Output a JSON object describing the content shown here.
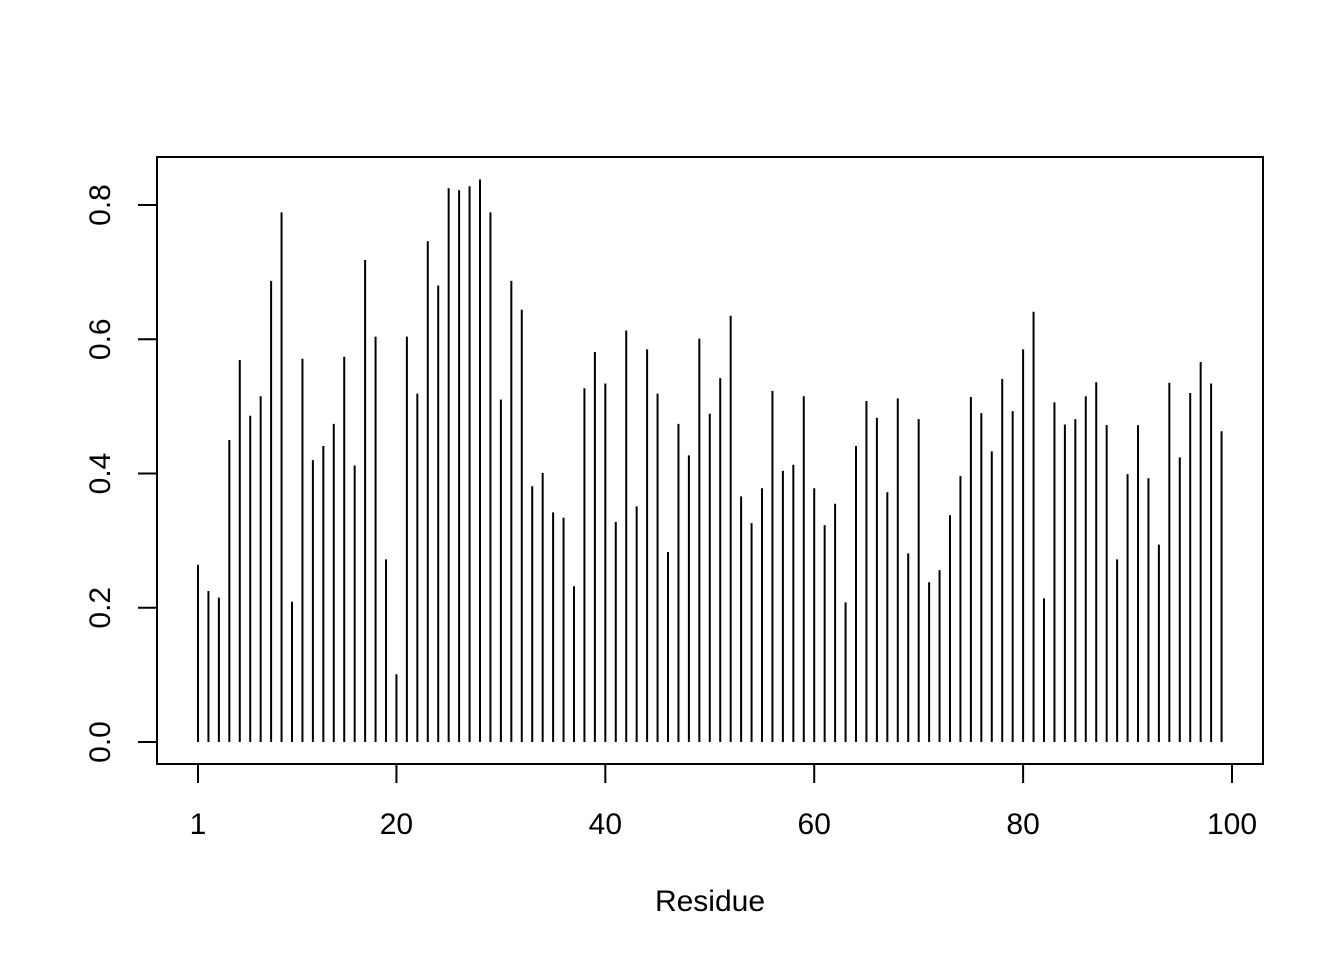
{
  "chart_data": {
    "type": "bar",
    "style": "vertical-lines",
    "title": "",
    "xlabel": "Residue",
    "ylabel": "",
    "xlim": [
      1,
      100
    ],
    "ylim": [
      0,
      0.84
    ],
    "grid": false,
    "x_ticks": [
      {
        "value": 1,
        "label": "1"
      },
      {
        "value": 20,
        "label": "20"
      },
      {
        "value": 40,
        "label": "40"
      },
      {
        "value": 60,
        "label": "60"
      },
      {
        "value": 80,
        "label": "80"
      },
      {
        "value": 100,
        "label": "100"
      }
    ],
    "y_ticks": [
      {
        "value": 0.0,
        "label": "0.0"
      },
      {
        "value": 0.2,
        "label": "0.2"
      },
      {
        "value": 0.4,
        "label": "0.4"
      },
      {
        "value": 0.6,
        "label": "0.6"
      },
      {
        "value": 0.8,
        "label": "0.8"
      }
    ],
    "x": [
      1,
      2,
      3,
      4,
      5,
      6,
      7,
      8,
      9,
      10,
      11,
      12,
      13,
      14,
      15,
      16,
      17,
      18,
      19,
      20,
      21,
      22,
      23,
      24,
      25,
      26,
      27,
      28,
      29,
      30,
      31,
      32,
      33,
      34,
      35,
      36,
      37,
      38,
      39,
      40,
      41,
      42,
      43,
      44,
      45,
      46,
      47,
      48,
      49,
      50,
      51,
      52,
      53,
      54,
      55,
      56,
      57,
      58,
      59,
      60,
      61,
      62,
      63,
      64,
      65,
      66,
      67,
      68,
      69,
      70,
      71,
      72,
      73,
      74,
      75,
      76,
      77,
      78,
      79,
      80,
      81,
      82,
      83,
      84,
      85,
      86,
      87,
      88,
      89,
      90,
      91,
      92,
      93,
      94,
      95,
      96,
      97,
      98,
      99
    ],
    "values": [
      0.264,
      0.225,
      0.215,
      0.45,
      0.569,
      0.486,
      0.515,
      0.687,
      0.789,
      0.209,
      0.571,
      0.42,
      0.441,
      0.474,
      0.574,
      0.412,
      0.718,
      0.604,
      0.272,
      0.101,
      0.604,
      0.519,
      0.746,
      0.68,
      0.825,
      0.822,
      0.828,
      0.838,
      0.789,
      0.51,
      0.687,
      0.644,
      0.381,
      0.401,
      0.342,
      0.334,
      0.232,
      0.527,
      0.581,
      0.534,
      0.328,
      0.613,
      0.351,
      0.585,
      0.519,
      0.283,
      0.474,
      0.427,
      0.601,
      0.489,
      0.542,
      0.635,
      0.366,
      0.326,
      0.378,
      0.523,
      0.404,
      0.413,
      0.515,
      0.378,
      0.323,
      0.355,
      0.208,
      0.441,
      0.508,
      0.483,
      0.372,
      0.512,
      0.281,
      0.481,
      0.238,
      0.256,
      0.338,
      0.396,
      0.514,
      0.49,
      0.433,
      0.541,
      0.493,
      0.585,
      0.641,
      0.214,
      0.506,
      0.473,
      0.481,
      0.515,
      0.536,
      0.472,
      0.272,
      0.399,
      0.472,
      0.393,
      0.294,
      0.535,
      0.424,
      0.52,
      0.566,
      0.534,
      0.463
    ]
  }
}
